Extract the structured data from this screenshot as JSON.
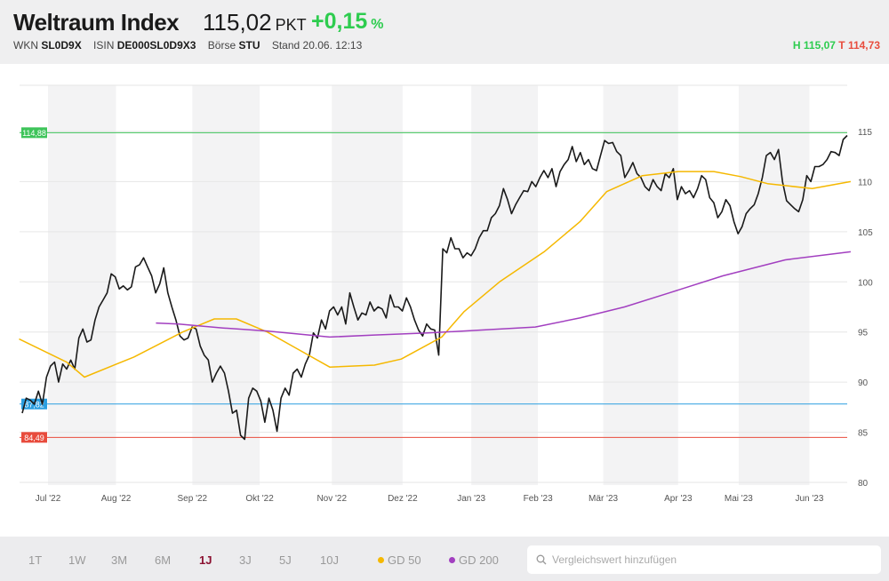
{
  "header": {
    "title": "Weltraum Index",
    "price": "115,02",
    "unit": "PKT",
    "change": "+0,15",
    "change_unit": "%",
    "wkn_label": "WKN",
    "wkn": "SL0D9X",
    "isin_label": "ISIN",
    "isin": "DE000SL0D9X3",
    "boerse_label": "Börse",
    "boerse": "STU",
    "stand": "Stand 20.06. 12:13",
    "high": "H 115,07",
    "low": "T 114,73"
  },
  "footer": {
    "ranges": [
      "1T",
      "1W",
      "3M",
      "6M",
      "1J",
      "3J",
      "5J",
      "10J"
    ],
    "active_range": "1J",
    "legend": [
      {
        "label": "GD 50",
        "color": "#f5b800"
      },
      {
        "label": "GD 200",
        "color": "#a23fc0"
      }
    ],
    "search_placeholder": "Vergleichswert hinzufügen"
  },
  "chart_data": {
    "type": "line",
    "x_unit": "months since Jul 2022",
    "xlim": [
      -0.42,
      11.7
    ],
    "ylim": [
      79.5,
      117.5
    ],
    "yticks": [
      80,
      85,
      90,
      95,
      100,
      105,
      110,
      115
    ],
    "month_labels": [
      {
        "label": "Jul '22",
        "x": 0
      },
      {
        "label": "Aug '22",
        "x": 0.99
      },
      {
        "label": "Sep '22",
        "x": 2.1
      },
      {
        "label": "Okt '22",
        "x": 3.08
      },
      {
        "label": "Nov '22",
        "x": 4.13
      },
      {
        "label": "Dez '22",
        "x": 5.16
      },
      {
        "label": "Jan '23",
        "x": 6.16
      },
      {
        "label": "Feb '23",
        "x": 7.13
      },
      {
        "label": "Mär '23",
        "x": 8.08
      },
      {
        "label": "Apr '23",
        "x": 9.17
      },
      {
        "label": "Mai '23",
        "x": 10.05
      },
      {
        "label": "Jun '23",
        "x": 11.08
      }
    ],
    "reference_lines": [
      {
        "label": "114,88",
        "value": 114.88,
        "color": "#3ec45a"
      },
      {
        "label": "87,82",
        "value": 87.82,
        "color": "#2a9ee0"
      },
      {
        "label": "84,49",
        "value": 84.49,
        "color": "#e84c3d"
      }
    ],
    "series": [
      {
        "name": "Weltraum Index",
        "color": "#1a1a1a",
        "values": [
          86.9,
          88.4,
          88.2,
          87.8,
          89.1,
          87.8,
          90.5,
          91.6,
          92.0,
          90.0,
          91.8,
          91.3,
          92.2,
          91.3,
          94.4,
          95.3,
          94.0,
          94.2,
          96.2,
          97.5,
          98.2,
          98.9,
          100.8,
          100.5,
          99.3,
          99.6,
          99.2,
          99.5,
          101.5,
          101.7,
          102.4,
          101.5,
          100.6,
          98.9,
          99.8,
          101.4,
          98.9,
          97.5,
          96.2,
          94.6,
          94.2,
          94.4,
          95.5,
          95.3,
          93.6,
          92.7,
          92.2,
          90.0,
          90.9,
          91.6,
          90.9,
          89.1,
          86.9,
          87.2,
          84.7,
          84.3,
          88.4,
          89.4,
          89.1,
          88.1,
          86.0,
          88.4,
          87.2,
          85.1,
          88.4,
          89.4,
          88.7,
          90.9,
          91.3,
          90.5,
          91.8,
          92.7,
          94.9,
          94.4,
          96.2,
          95.3,
          97.1,
          97.5,
          96.7,
          97.5,
          95.8,
          98.9,
          97.5,
          96.2,
          96.9,
          96.7,
          98.0,
          97.1,
          97.5,
          97.3,
          96.4,
          98.7,
          97.5,
          97.5,
          97.1,
          98.4,
          97.5,
          96.2,
          95.2,
          94.6,
          95.8,
          95.3,
          95.2,
          92.7,
          103.3,
          102.9,
          104.4,
          103.3,
          103.3,
          102.4,
          102.9,
          102.6,
          103.3,
          104.4,
          105.1,
          105.1,
          106.4,
          106.8,
          107.6,
          109.3,
          108.2,
          106.8,
          107.7,
          108.4,
          109.1,
          109.0,
          110.0,
          109.5,
          110.4,
          111.1,
          110.4,
          111.3,
          109.5,
          111.0,
          111.7,
          112.2,
          113.5,
          112.0,
          112.9,
          111.7,
          112.2,
          111.3,
          111.1,
          112.6,
          114.1,
          113.8,
          113.9,
          113.0,
          112.6,
          110.4,
          111.1,
          111.9,
          110.8,
          110.4,
          109.5,
          109.1,
          110.2,
          109.5,
          109.1,
          110.8,
          110.4,
          111.3,
          108.2,
          109.5,
          108.8,
          109.1,
          108.4,
          109.3,
          110.6,
          110.2,
          108.4,
          107.9,
          106.4,
          107.0,
          108.2,
          107.6,
          106.0,
          104.8,
          105.5,
          106.8,
          107.3,
          107.7,
          108.8,
          110.4,
          112.6,
          112.9,
          112.2,
          113.2,
          110.0,
          108.1,
          107.7,
          107.3,
          107.0,
          108.2,
          110.6,
          110.0,
          111.5,
          111.5,
          111.7,
          112.2,
          113.0,
          112.9,
          112.6,
          114.2,
          114.6
        ]
      },
      {
        "name": "GD 50",
        "color": "#f5b800",
        "points": [
          [
            -0.42,
            94.3
          ],
          [
            0.27,
            92.0
          ],
          [
            0.53,
            90.5
          ],
          [
            1.25,
            92.5
          ],
          [
            1.96,
            95.0
          ],
          [
            2.42,
            96.3
          ],
          [
            2.74,
            96.3
          ],
          [
            3.19,
            95.0
          ],
          [
            3.58,
            93.5
          ],
          [
            4.1,
            91.5
          ],
          [
            4.75,
            91.7
          ],
          [
            5.14,
            92.3
          ],
          [
            5.73,
            94.5
          ],
          [
            6.05,
            97.0
          ],
          [
            6.57,
            100.0
          ],
          [
            7.22,
            103.0
          ],
          [
            7.74,
            106.0
          ],
          [
            8.13,
            109.0
          ],
          [
            8.65,
            110.6
          ],
          [
            9.17,
            111.0
          ],
          [
            9.69,
            111.0
          ],
          [
            10.08,
            110.5
          ],
          [
            10.47,
            109.8
          ],
          [
            11.12,
            109.3
          ],
          [
            11.68,
            110.0
          ]
        ]
      },
      {
        "name": "GD 200",
        "color": "#a23fc0",
        "points": [
          [
            1.57,
            95.9
          ],
          [
            1.9,
            95.8
          ],
          [
            2.55,
            95.4
          ],
          [
            3.19,
            95.1
          ],
          [
            4.1,
            94.5
          ],
          [
            4.75,
            94.7
          ],
          [
            5.53,
            94.9
          ],
          [
            6.31,
            95.2
          ],
          [
            7.09,
            95.5
          ],
          [
            7.74,
            96.4
          ],
          [
            8.39,
            97.5
          ],
          [
            9.04,
            98.9
          ],
          [
            9.82,
            100.6
          ],
          [
            10.73,
            102.2
          ],
          [
            11.68,
            103.0
          ]
        ]
      }
    ]
  }
}
